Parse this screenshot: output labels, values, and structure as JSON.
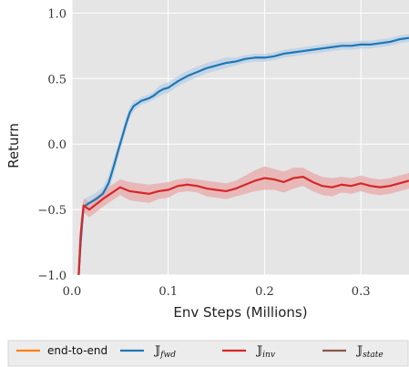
{
  "chart_data": {
    "type": "line",
    "xlabel": "Env Steps (Millions)",
    "ylabel": "Return",
    "xlim": [
      0,
      0.35
    ],
    "ylim": [
      -1.0,
      1.1
    ],
    "xticks": [
      0.0,
      0.1,
      0.2,
      0.3
    ],
    "xtick_labels": [
      "0.0",
      "0.1",
      "0.2",
      "0.3"
    ],
    "yticks": [
      -1.0,
      -0.5,
      0.0,
      0.5,
      1.0
    ],
    "ytick_labels": [
      "−1.0",
      "−0.5",
      "0.0",
      "0.5",
      "1.0"
    ],
    "grid": true,
    "legend_position": "bottom",
    "series": [
      {
        "name": "end-to-end",
        "legend_label": "end-to-end",
        "color": "#ff7f0e",
        "shaded_band": false,
        "x": [],
        "y": []
      },
      {
        "name": "J_fwd",
        "legend_label": "𝕁",
        "legend_subscript": "fwd",
        "color": "#1f77b4",
        "band_color": "#b7cfe6",
        "x": [
          0.007,
          0.009,
          0.012,
          0.018,
          0.025,
          0.032,
          0.038,
          0.043,
          0.048,
          0.052,
          0.056,
          0.06,
          0.064,
          0.068,
          0.072,
          0.076,
          0.08,
          0.085,
          0.09,
          0.095,
          0.1,
          0.11,
          0.12,
          0.13,
          0.14,
          0.15,
          0.16,
          0.17,
          0.18,
          0.19,
          0.2,
          0.21,
          0.22,
          0.23,
          0.24,
          0.25,
          0.26,
          0.27,
          0.28,
          0.29,
          0.3,
          0.31,
          0.32,
          0.33,
          0.34,
          0.35
        ],
        "y": [
          -1.0,
          -0.75,
          -0.48,
          -0.45,
          -0.42,
          -0.38,
          -0.3,
          -0.18,
          -0.05,
          0.05,
          0.15,
          0.24,
          0.29,
          0.31,
          0.33,
          0.34,
          0.35,
          0.37,
          0.4,
          0.42,
          0.43,
          0.48,
          0.52,
          0.55,
          0.58,
          0.6,
          0.62,
          0.63,
          0.65,
          0.66,
          0.66,
          0.67,
          0.69,
          0.7,
          0.71,
          0.72,
          0.73,
          0.74,
          0.75,
          0.75,
          0.76,
          0.76,
          0.77,
          0.78,
          0.8,
          0.81
        ],
        "band_width": [
          0.2,
          0.15,
          0.06,
          0.05,
          0.05,
          0.05,
          0.06,
          0.06,
          0.05,
          0.05,
          0.05,
          0.04,
          0.04,
          0.03,
          0.03,
          0.03,
          0.03,
          0.03,
          0.04,
          0.04,
          0.04,
          0.04,
          0.04,
          0.04,
          0.04,
          0.04,
          0.04,
          0.03,
          0.03,
          0.03,
          0.03,
          0.03,
          0.03,
          0.03,
          0.03,
          0.03,
          0.03,
          0.03,
          0.03,
          0.03,
          0.03,
          0.03,
          0.03,
          0.03,
          0.03,
          0.03
        ]
      },
      {
        "name": "J_inv",
        "legend_label": "𝕁",
        "legend_subscript": "inv",
        "color": "#d62728",
        "band_color": "#e8a8a8",
        "x": [
          0.007,
          0.009,
          0.012,
          0.018,
          0.025,
          0.032,
          0.04,
          0.05,
          0.06,
          0.07,
          0.08,
          0.09,
          0.1,
          0.11,
          0.12,
          0.13,
          0.14,
          0.15,
          0.16,
          0.17,
          0.18,
          0.19,
          0.2,
          0.21,
          0.22,
          0.23,
          0.24,
          0.25,
          0.26,
          0.27,
          0.28,
          0.29,
          0.3,
          0.31,
          0.32,
          0.33,
          0.34,
          0.35
        ],
        "y": [
          -1.0,
          -0.7,
          -0.47,
          -0.5,
          -0.46,
          -0.42,
          -0.38,
          -0.33,
          -0.36,
          -0.37,
          -0.38,
          -0.36,
          -0.35,
          -0.32,
          -0.31,
          -0.32,
          -0.34,
          -0.35,
          -0.36,
          -0.34,
          -0.31,
          -0.28,
          -0.26,
          -0.27,
          -0.29,
          -0.26,
          -0.25,
          -0.29,
          -0.32,
          -0.33,
          -0.31,
          -0.32,
          -0.3,
          -0.32,
          -0.33,
          -0.32,
          -0.3,
          -0.28
        ],
        "band_width": [
          0.15,
          0.12,
          0.05,
          0.06,
          0.06,
          0.06,
          0.06,
          0.06,
          0.07,
          0.07,
          0.07,
          0.06,
          0.06,
          0.05,
          0.05,
          0.05,
          0.06,
          0.06,
          0.06,
          0.06,
          0.07,
          0.08,
          0.09,
          0.08,
          0.08,
          0.08,
          0.07,
          0.07,
          0.07,
          0.07,
          0.06,
          0.06,
          0.06,
          0.06,
          0.06,
          0.06,
          0.06,
          0.06
        ]
      },
      {
        "name": "J_state",
        "legend_label": "𝕁",
        "legend_subscript": "state",
        "color": "#8c564b",
        "shaded_band": false,
        "x": [],
        "y": []
      }
    ]
  }
}
